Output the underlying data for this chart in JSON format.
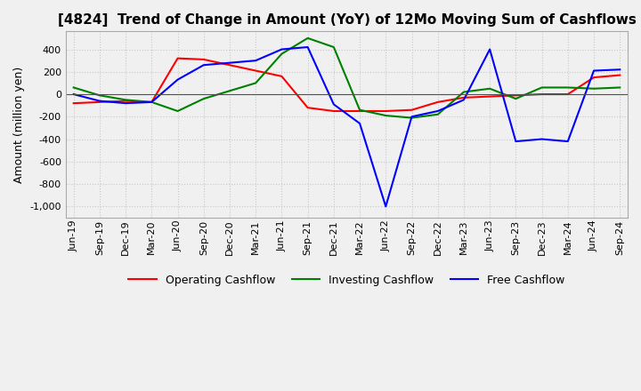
{
  "title": "[4824]  Trend of Change in Amount (YoY) of 12Mo Moving Sum of Cashflows",
  "ylabel": "Amount (million yen)",
  "x_labels": [
    "Jun-19",
    "Sep-19",
    "Dec-19",
    "Mar-20",
    "Jun-20",
    "Sep-20",
    "Dec-20",
    "Mar-21",
    "Jun-21",
    "Sep-21",
    "Dec-21",
    "Mar-22",
    "Jun-22",
    "Sep-22",
    "Dec-22",
    "Mar-23",
    "Jun-23",
    "Sep-23",
    "Dec-23",
    "Mar-24",
    "Jun-24",
    "Sep-24"
  ],
  "operating": [
    -80,
    -70,
    -60,
    -70,
    320,
    310,
    260,
    210,
    160,
    -120,
    -150,
    -150,
    -150,
    -140,
    -70,
    -30,
    -20,
    -10,
    0,
    0,
    150,
    170
  ],
  "investing": [
    60,
    -10,
    -50,
    -70,
    -150,
    -40,
    30,
    100,
    360,
    500,
    420,
    -140,
    -190,
    -210,
    -180,
    20,
    50,
    -40,
    60,
    60,
    50,
    60
  ],
  "free": [
    0,
    -60,
    -80,
    -70,
    130,
    260,
    280,
    300,
    400,
    420,
    -90,
    -260,
    -1000,
    -200,
    -150,
    -50,
    400,
    -420,
    -400,
    -420,
    210,
    220
  ],
  "ylim": [
    -1100,
    560
  ],
  "yticks": [
    400,
    200,
    0,
    -200,
    -400,
    -600,
    -800,
    -1000
  ],
  "operating_color": "#ff0000",
  "investing_color": "#008000",
  "free_color": "#0000ff",
  "grid_color": "#c8c8c8",
  "background_color": "#f0f0f0",
  "title_fontsize": 11,
  "label_fontsize": 9,
  "tick_fontsize": 8
}
